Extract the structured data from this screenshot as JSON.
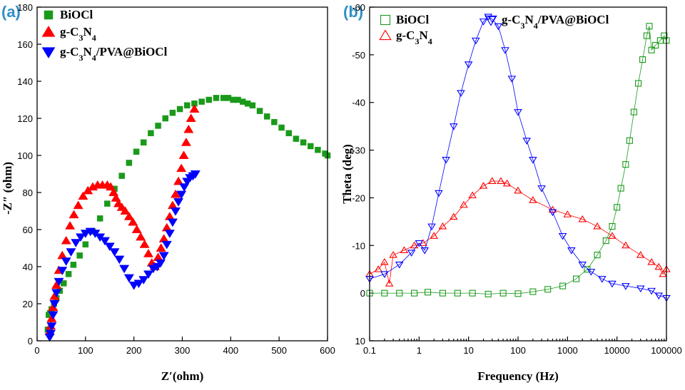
{
  "chart_data": [
    {
      "panel": "(a)",
      "type": "scatter",
      "xlabel": "Z′(ohm)",
      "ylabel": "-Z″ (ohm)",
      "xlim": [
        0,
        600
      ],
      "ylim": [
        0,
        180
      ],
      "xticks": [
        0,
        100,
        200,
        300,
        400,
        500,
        600
      ],
      "yticks": [
        0,
        20,
        40,
        60,
        80,
        100,
        120,
        140,
        160,
        180
      ],
      "legend": "top-left",
      "series": [
        {
          "name": "BiOCl",
          "marker": "square",
          "color": "#1a9a1a",
          "x": [
            22,
            24,
            27,
            30,
            35,
            40,
            47,
            55,
            65,
            75,
            88,
            100,
            115,
            130,
            145,
            160,
            175,
            190,
            205,
            220,
            235,
            250,
            265,
            280,
            295,
            310,
            325,
            340,
            355,
            370,
            385,
            395,
            405,
            415,
            425,
            435,
            445,
            460,
            475,
            490,
            505,
            520,
            535,
            550,
            565,
            580,
            595,
            600
          ],
          "y": [
            6,
            14,
            15,
            17,
            20,
            23,
            27,
            31,
            36,
            41,
            46,
            52,
            59,
            66,
            74,
            82,
            89,
            96,
            102,
            107,
            112,
            116,
            120,
            123,
            125,
            127,
            128,
            129,
            130,
            131,
            131,
            131,
            130,
            130,
            129,
            128,
            127,
            124,
            121,
            118,
            115,
            112,
            109,
            107,
            105,
            103,
            101,
            100
          ]
        },
        {
          "name": "g-C3N4",
          "marker": "triangle-up",
          "color": "#ff0000",
          "x": [
            26,
            28,
            30,
            33,
            36,
            40,
            45,
            52,
            60,
            68,
            76,
            85,
            95,
            105,
            115,
            125,
            135,
            145,
            152,
            158,
            163,
            168,
            175,
            182,
            190,
            198,
            206,
            214,
            222,
            230,
            237,
            243,
            250,
            256,
            262,
            268,
            274,
            280,
            286,
            292,
            298,
            303,
            308,
            313,
            318,
            325
          ],
          "y": [
            5,
            8,
            12,
            18,
            24,
            30,
            38,
            46,
            54,
            62,
            68,
            73,
            78,
            81,
            83,
            84,
            84,
            84,
            83,
            80,
            77,
            74,
            72,
            70,
            67,
            64,
            60,
            56,
            52,
            47,
            42,
            40,
            45,
            50,
            55,
            61,
            67,
            73,
            79,
            86,
            93,
            100,
            107,
            114,
            120,
            125
          ]
        },
        {
          "name": "g-C3N4/PVA@BiOCl",
          "marker": "triangle-down",
          "color": "#0000ff",
          "x": [
            26,
            28,
            30,
            33,
            36,
            40,
            45,
            52,
            60,
            70,
            80,
            90,
            100,
            110,
            120,
            130,
            140,
            150,
            160,
            170,
            180,
            190,
            200,
            210,
            220,
            230,
            240,
            248,
            255,
            262,
            268,
            274,
            280,
            286,
            292,
            298,
            304,
            310,
            316,
            322,
            327
          ],
          "y": [
            2,
            4,
            8,
            14,
            20,
            26,
            32,
            38,
            43,
            48,
            53,
            56,
            58,
            59,
            58,
            56,
            54,
            51,
            48,
            44,
            39,
            34,
            30,
            31,
            33,
            36,
            39,
            40,
            42,
            46,
            52,
            58,
            64,
            70,
            75,
            79,
            83,
            86,
            88,
            89,
            90
          ]
        }
      ]
    },
    {
      "panel": "(b)",
      "type": "scatter",
      "xlabel": "Frequency (Hz)",
      "ylabel": "Theta (deg)",
      "xscale": "log",
      "xlim": [
        0.1,
        100000
      ],
      "ylim": [
        10,
        -60
      ],
      "y_inverted": true,
      "xticks": [
        0.1,
        1,
        10,
        100,
        1000,
        10000,
        100000
      ],
      "xticklabels": [
        "0.1",
        "1",
        "10",
        "100",
        "1000",
        "10000",
        "100000"
      ],
      "yticks": [
        10,
        0,
        -10,
        -20,
        -30,
        -40,
        -50,
        -60
      ],
      "yticklabels": [
        "10",
        "0",
        "-10",
        "-20",
        "-30",
        "-40",
        "-50",
        "-60"
      ],
      "legend": "top",
      "series": [
        {
          "name": "BiOCl",
          "marker": "square-open",
          "color": "#1a9a1a",
          "x": [
            0.1,
            0.2,
            0.4,
            0.8,
            1.5,
            3,
            6,
            12,
            25,
            50,
            100,
            200,
            400,
            800,
            1500,
            2500,
            4000,
            6000,
            8000,
            10000,
            12000,
            15000,
            18000,
            22000,
            27000,
            33000,
            40000,
            45000,
            50000,
            60000,
            75000,
            90000,
            100000
          ],
          "y": [
            0,
            0,
            0,
            0,
            -0.2,
            0,
            0,
            0,
            0.2,
            0,
            0.1,
            -0.3,
            -0.8,
            -1.5,
            -3,
            -5,
            -8,
            -11,
            -14,
            -18,
            -22,
            -27,
            -32,
            -38,
            -44,
            -49,
            -54,
            -56,
            -51,
            -52,
            -53,
            -54,
            -53
          ]
        },
        {
          "name": "g-C3N4",
          "marker": "triangle-up-open",
          "color": "#ff0000",
          "x": [
            0.1,
            0.15,
            0.2,
            0.25,
            0.3,
            0.5,
            0.8,
            1.2,
            2,
            3,
            5,
            8,
            12,
            20,
            30,
            45,
            60,
            100,
            200,
            500,
            1000,
            2000,
            4000,
            8000,
            15000,
            30000,
            50000,
            70000,
            85000,
            100000
          ],
          "y": [
            -4,
            -5,
            -6.5,
            -2,
            -8,
            -9,
            -10,
            -10.5,
            -12,
            -14,
            -16,
            -18.5,
            -20.5,
            -22.5,
            -23.5,
            -23.5,
            -23,
            -21.5,
            -19.5,
            -17.5,
            -16.5,
            -15.5,
            -14,
            -12,
            -10,
            -8,
            -6.5,
            -5.5,
            -4,
            -5
          ]
        },
        {
          "name": "g-C3N4/PVA@BiOCl",
          "marker": "triangle-down-open",
          "color": "#0000ff",
          "x": [
            0.1,
            0.2,
            0.4,
            0.7,
            1,
            1.3,
            1.8,
            2.5,
            3.5,
            5,
            7,
            10,
            14,
            20,
            25,
            30,
            40,
            55,
            75,
            100,
            150,
            200,
            300,
            500,
            800,
            1200,
            2000,
            3000,
            5000,
            8000,
            15000,
            30000,
            50000,
            70000,
            100000
          ],
          "y": [
            -3,
            -4,
            -6,
            -8.5,
            -10.5,
            -9,
            -14,
            -21,
            -28,
            -35,
            -42,
            -48,
            -53,
            -57,
            -58,
            -57.5,
            -56,
            -51,
            -45,
            -38,
            -32,
            -28,
            -22,
            -17,
            -12,
            -9,
            -6,
            -4.5,
            -3,
            -2,
            -1.5,
            -1,
            -0.5,
            0.5,
            1
          ]
        }
      ]
    }
  ]
}
